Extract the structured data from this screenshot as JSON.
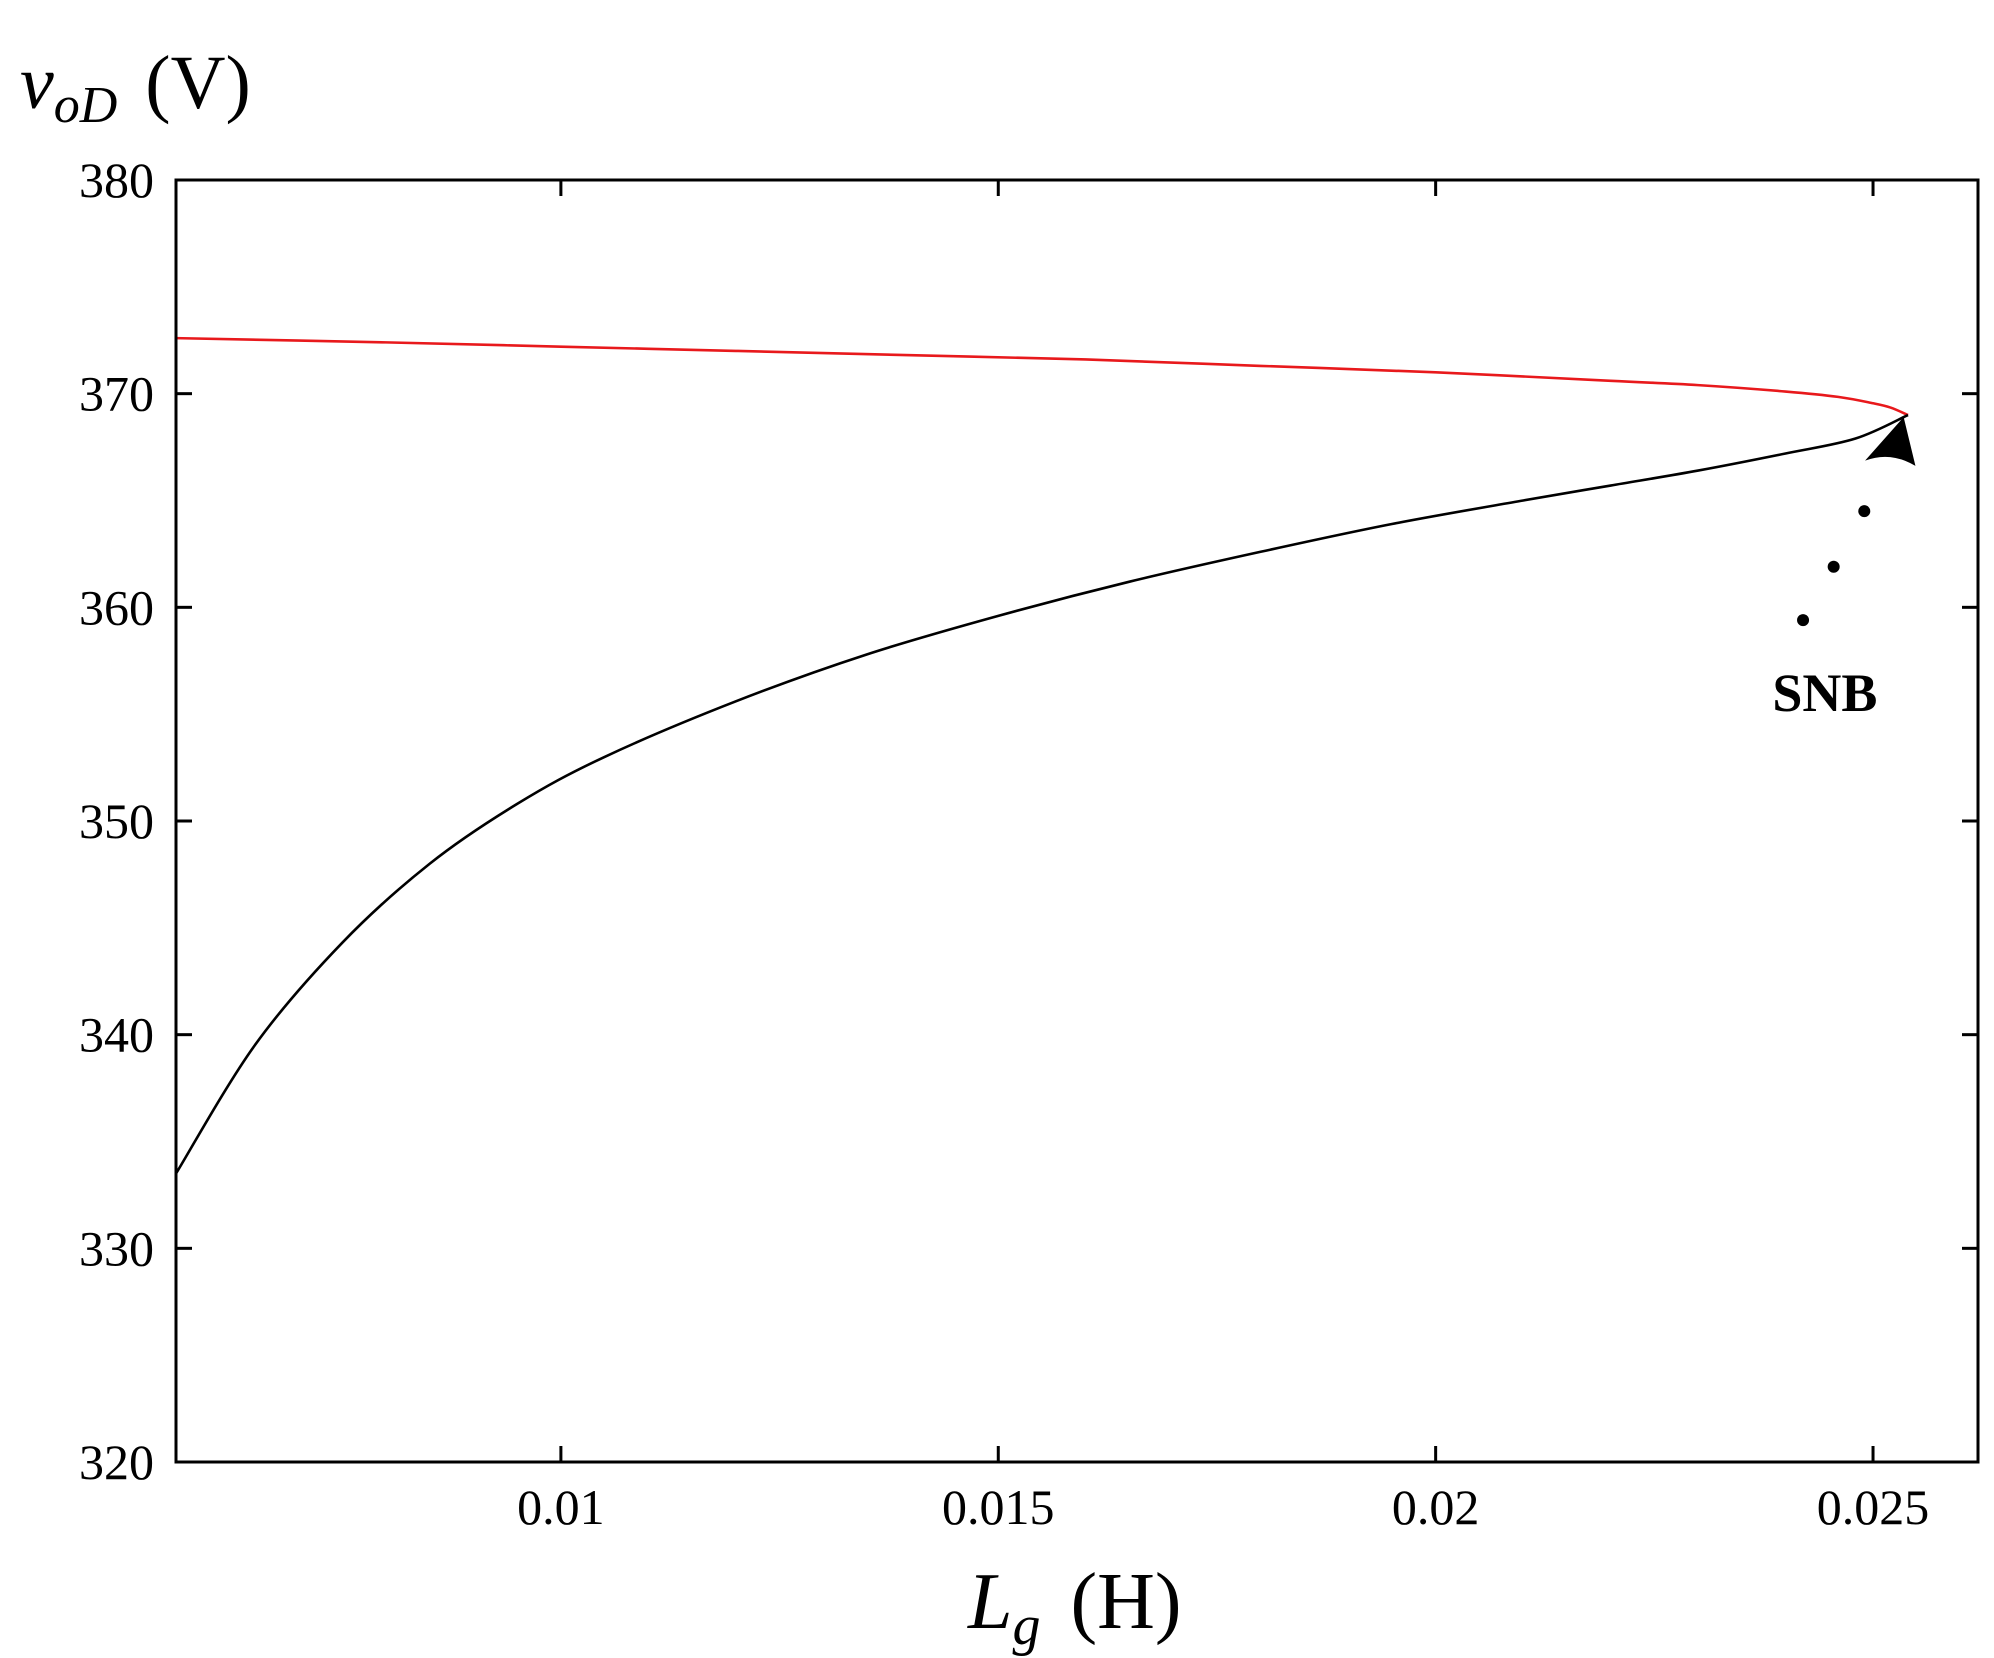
{
  "chart_data": {
    "type": "line",
    "title": "",
    "xlabel": {
      "main": "L",
      "sub": "g",
      "unit": "(H)"
    },
    "ylabel": {
      "main": "v",
      "sub": "oD",
      "unit": "(V)"
    },
    "xlim": [
      0.0056,
      0.0262
    ],
    "ylim": [
      320,
      380
    ],
    "xticks": [
      0.01,
      0.015,
      0.02,
      0.025
    ],
    "xtick_labels": [
      "0.01",
      "0.015",
      "0.02",
      "0.025"
    ],
    "yticks": [
      320,
      330,
      340,
      350,
      360,
      370,
      380
    ],
    "ytick_labels": [
      "320",
      "330",
      "340",
      "350",
      "360",
      "370",
      "380"
    ],
    "grid": false,
    "series": [
      {
        "color": "#e8191c",
        "x": [
          0.0056,
          0.008,
          0.01,
          0.012,
          0.014,
          0.016,
          0.018,
          0.02,
          0.022,
          0.023,
          0.024,
          0.0246,
          0.025,
          0.0252,
          0.0254
        ],
        "y": [
          372.6,
          372.4,
          372.2,
          372.0,
          371.8,
          371.6,
          371.3,
          371.0,
          370.6,
          370.4,
          370.1,
          369.85,
          369.55,
          369.35,
          369.0
        ]
      },
      {
        "color": "#000000",
        "x": [
          0.0056,
          0.0065,
          0.0075,
          0.0085,
          0.0095,
          0.0105,
          0.012,
          0.0135,
          0.015,
          0.0165,
          0.018,
          0.0195,
          0.021,
          0.022,
          0.023,
          0.024,
          0.0248,
          0.0254
        ],
        "y": [
          333.5,
          339.5,
          344.3,
          348.0,
          350.8,
          353.0,
          355.6,
          357.8,
          359.6,
          361.2,
          362.6,
          363.9,
          365.0,
          365.7,
          366.4,
          367.2,
          367.9,
          369.0
        ]
      }
    ],
    "annotations": [
      {
        "text": "SNB",
        "x": 0.02445,
        "y": 356
      }
    ],
    "arrow": {
      "dots": [
        [
          0.0242,
          359.4
        ],
        [
          0.02455,
          361.9
        ],
        [
          0.0249,
          364.5
        ]
      ],
      "head": [
        0.02535,
        368.9
      ]
    }
  }
}
